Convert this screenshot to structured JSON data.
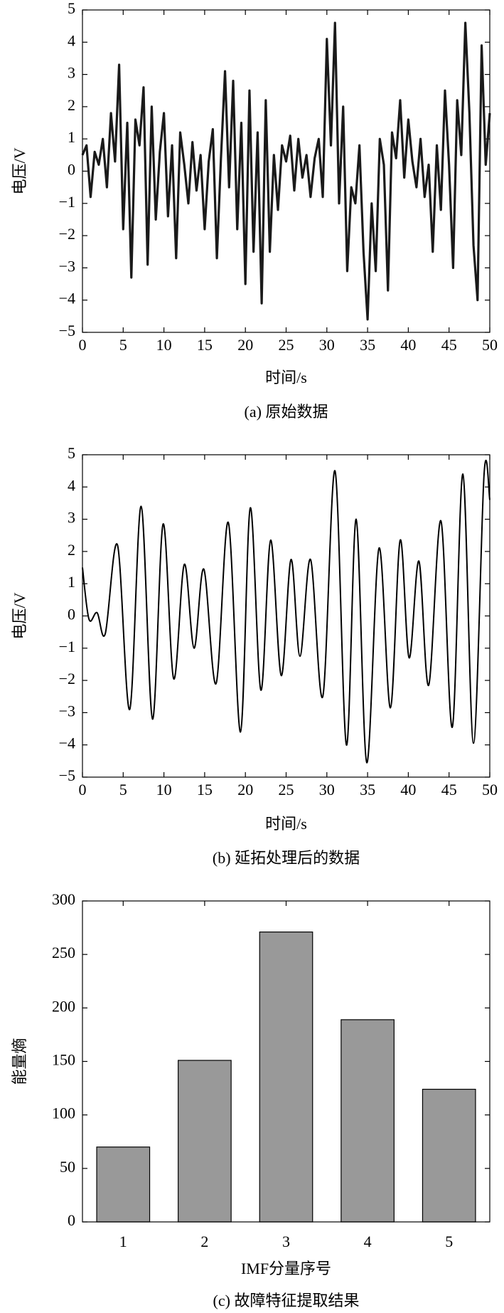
{
  "chart_data": [
    {
      "type": "line",
      "caption": "(a) 原始数据",
      "xlabel": "时间/s",
      "ylabel": "电压/V",
      "x": [
        0,
        0.5,
        1,
        1.5,
        2,
        2.5,
        3,
        3.5,
        4,
        4.5,
        5,
        5.5,
        6,
        6.5,
        7,
        7.5,
        8,
        8.5,
        9,
        9.5,
        10,
        10.5,
        11,
        11.5,
        12,
        12.5,
        13,
        13.5,
        14,
        14.5,
        15,
        15.5,
        16,
        16.5,
        17,
        17.5,
        18,
        18.5,
        19,
        19.5,
        20,
        20.5,
        21,
        21.5,
        22,
        22.5,
        23,
        23.5,
        24,
        24.5,
        25,
        25.5,
        26,
        26.5,
        27,
        27.5,
        28,
        28.5,
        29,
        29.5,
        30,
        30.5,
        31,
        31.5,
        32,
        32.5,
        33,
        33.5,
        34,
        34.5,
        35,
        35.5,
        36,
        36.5,
        37,
        37.5,
        38,
        38.5,
        39,
        39.5,
        40,
        40.5,
        41,
        41.5,
        42,
        42.5,
        43,
        43.5,
        44,
        44.5,
        45,
        45.5,
        46,
        46.5,
        47,
        47.5,
        48,
        48.5,
        49,
        49.5,
        50
      ],
      "series": [
        {
          "color": "#1a1a1a",
          "values": [
            0.5,
            0.8,
            -0.8,
            0.6,
            0.2,
            1.0,
            -0.5,
            1.8,
            0.3,
            3.3,
            -1.8,
            1.5,
            -3.3,
            1.6,
            0.8,
            2.6,
            -2.9,
            2.0,
            -1.5,
            0.6,
            1.8,
            -1.4,
            0.8,
            -2.7,
            1.2,
            0.2,
            -1.0,
            0.9,
            -0.6,
            0.5,
            -1.8,
            0.3,
            1.3,
            -2.7,
            0.4,
            3.1,
            -0.5,
            2.8,
            -1.8,
            1.5,
            -3.5,
            2.5,
            -2.5,
            1.2,
            -4.1,
            2.2,
            -2.5,
            0.5,
            -1.2,
            0.8,
            0.3,
            1.1,
            -0.6,
            1.0,
            -0.2,
            0.5,
            -0.8,
            0.4,
            1.0,
            -0.8,
            4.1,
            0.8,
            4.6,
            -1.0,
            2.0,
            -3.1,
            -0.5,
            -1.0,
            0.8,
            -2.5,
            -4.6,
            -1.0,
            -3.1,
            1.0,
            0.2,
            -3.7,
            1.2,
            0.4,
            2.2,
            -0.2,
            1.6,
            0.3,
            -0.5,
            1.0,
            -0.8,
            0.2,
            -2.5,
            0.8,
            -1.2,
            2.5,
            0.2,
            -3.0,
            2.2,
            0.5,
            4.6,
            1.8,
            -2.3,
            -4.0,
            3.9,
            0.2,
            1.8
          ]
        }
      ],
      "xlim": [
        0,
        50
      ],
      "xticks": [
        0,
        5,
        10,
        15,
        20,
        25,
        30,
        35,
        40,
        45,
        50
      ],
      "ylim": [
        -5,
        5
      ],
      "yticks": [
        {
          "value": -5,
          "label": "−5"
        },
        {
          "value": -4,
          "label": "−4"
        },
        {
          "value": -3,
          "label": "−3"
        },
        {
          "value": -2,
          "label": "−2"
        },
        {
          "value": -1,
          "label": "−1"
        },
        0,
        1,
        2,
        3,
        4,
        5
      ]
    },
    {
      "type": "line",
      "smooth": true,
      "caption": "(b) 延拓处理后的数据",
      "xlabel": "时间/s",
      "ylabel": "电压/V",
      "x": [
        0,
        0.8,
        1.8,
        2.8,
        4.3,
        5.8,
        7.2,
        8.6,
        9.9,
        11.2,
        12.5,
        13.7,
        14.9,
        16.4,
        17.9,
        19.4,
        20.6,
        21.9,
        23.1,
        24.4,
        25.6,
        26.7,
        28.0,
        29.5,
        31.0,
        32.4,
        33.6,
        34.9,
        36.4,
        37.8,
        39.0,
        40.1,
        41.3,
        42.5,
        44.0,
        45.4,
        46.7,
        48.0,
        49.3,
        50
      ],
      "series": [
        {
          "color": "#000000",
          "values": [
            1.5,
            -0.1,
            0.1,
            -0.55,
            2.2,
            -2.9,
            3.4,
            -3.2,
            2.85,
            -1.95,
            1.6,
            -1.0,
            1.45,
            -2.1,
            2.9,
            -3.6,
            3.35,
            -2.3,
            2.35,
            -1.85,
            1.75,
            -1.25,
            1.75,
            -2.5,
            4.5,
            -4.0,
            3.0,
            -4.55,
            2.1,
            -2.85,
            2.35,
            -1.3,
            1.7,
            -2.15,
            2.95,
            -3.45,
            4.4,
            -3.95,
            4.4,
            3.6
          ]
        }
      ],
      "xlim": [
        0,
        50
      ],
      "xticks": [
        0,
        5,
        10,
        15,
        20,
        25,
        30,
        35,
        40,
        45,
        50
      ],
      "ylim": [
        -5,
        5
      ],
      "yticks": [
        {
          "value": -5,
          "label": "−5"
        },
        {
          "value": -4,
          "label": "−4"
        },
        {
          "value": -3,
          "label": "−3"
        },
        {
          "value": -2,
          "label": "−2"
        },
        {
          "value": -1,
          "label": "−1"
        },
        0,
        1,
        2,
        3,
        4,
        5
      ]
    },
    {
      "type": "bar",
      "caption": "(c) 故障特征提取结果",
      "xlabel": "IMF分量序号",
      "ylabel": "能量熵",
      "categories": [
        "1",
        "2",
        "3",
        "4",
        "5"
      ],
      "values": [
        70,
        151,
        271,
        189,
        124
      ],
      "color": "#999999",
      "ylim": [
        0,
        300
      ],
      "yticks": [
        0,
        50,
        100,
        150,
        200,
        250,
        300
      ]
    }
  ]
}
